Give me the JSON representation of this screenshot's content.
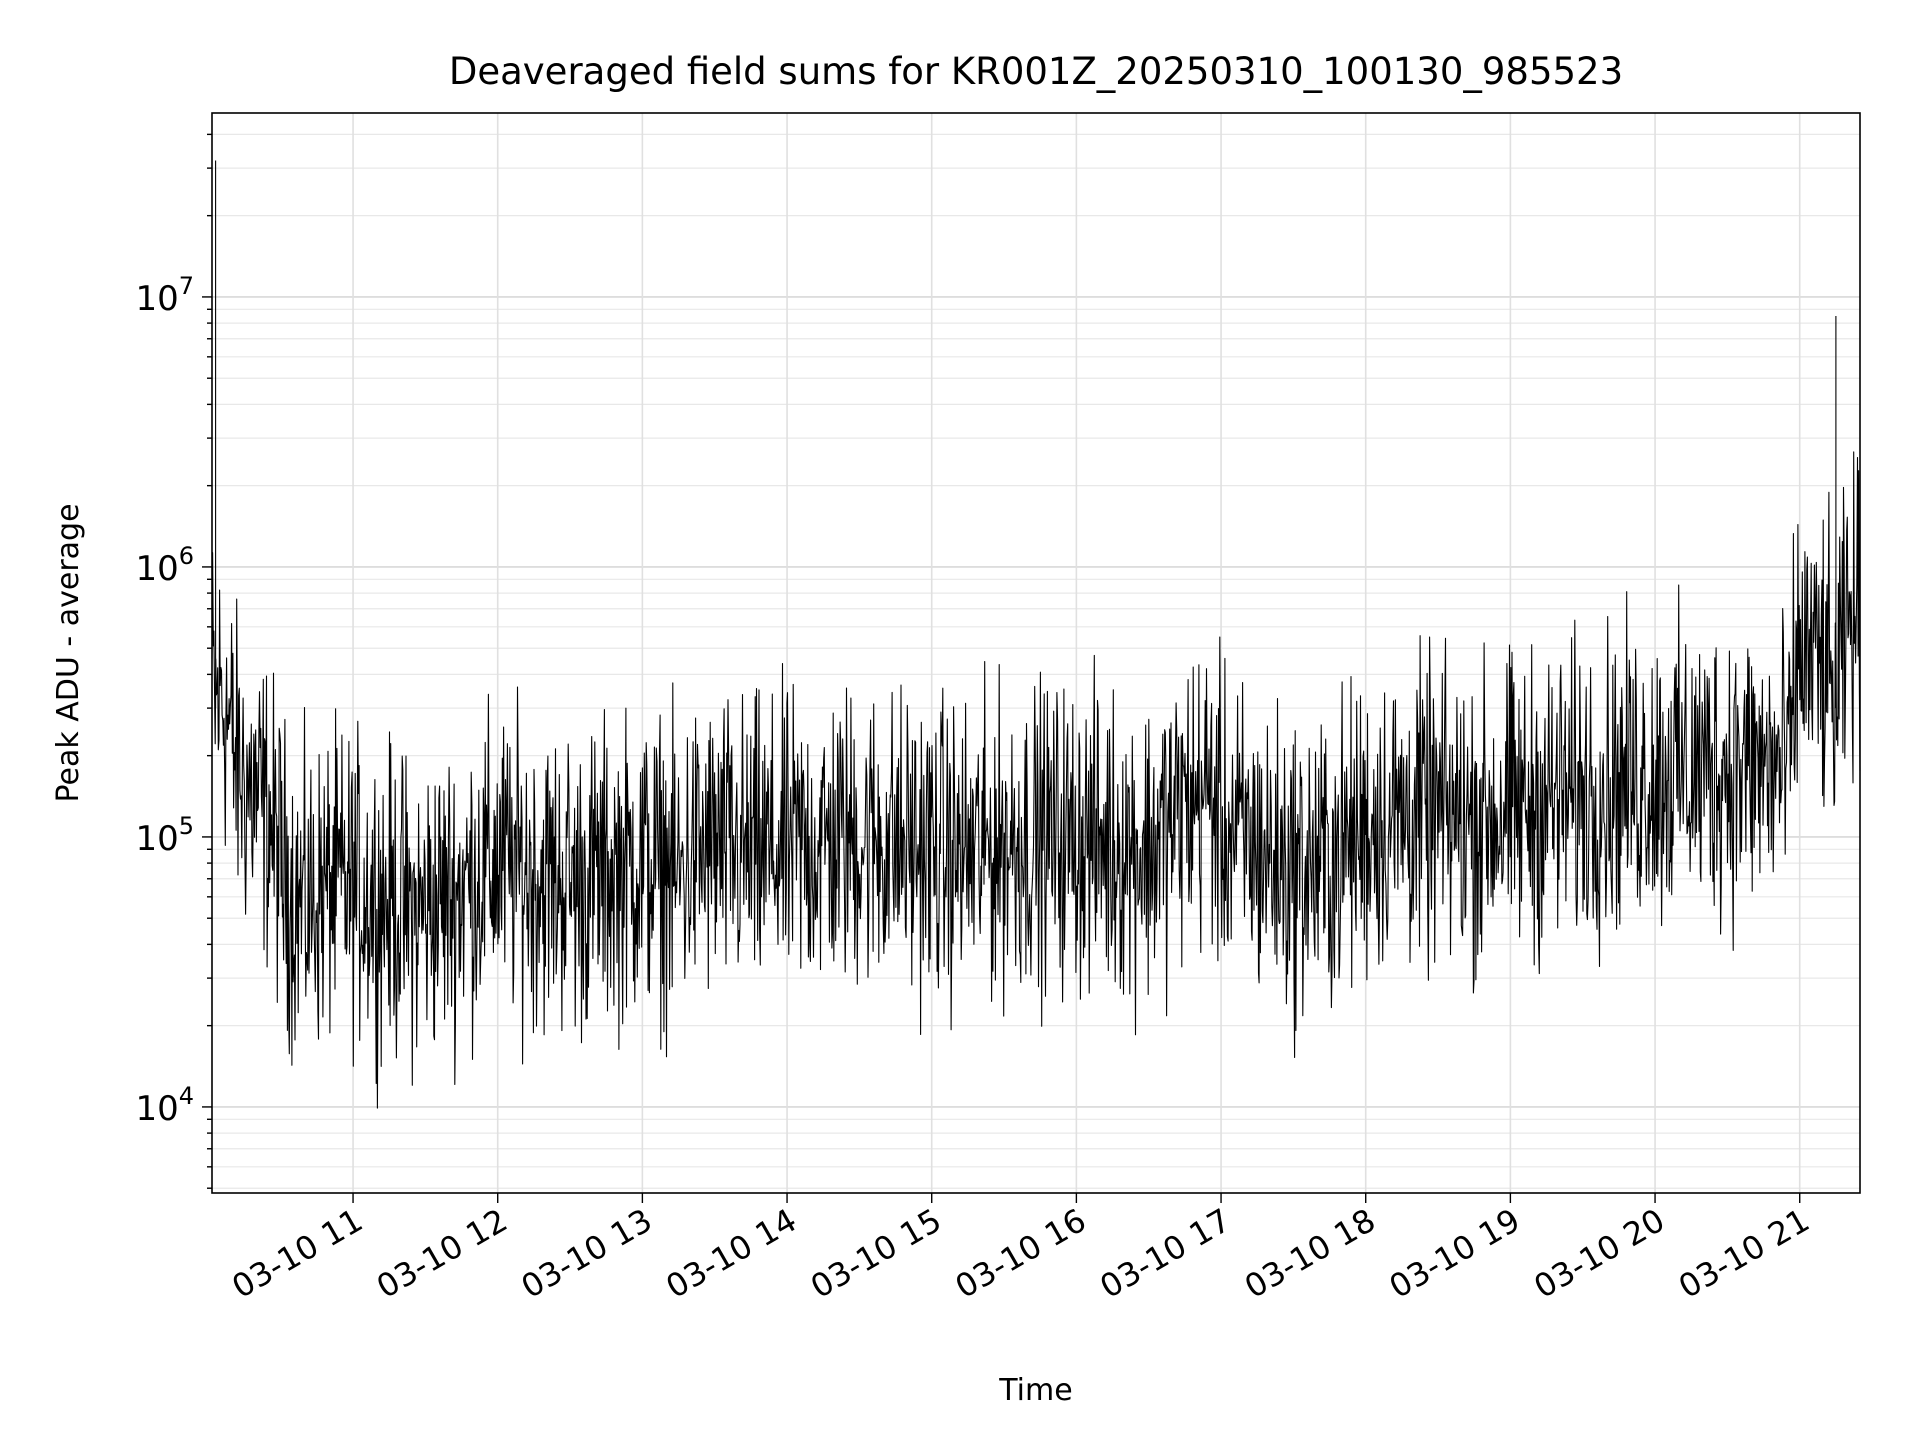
{
  "chart_data": {
    "type": "line",
    "title": "Deaveraged field sums for KR001Z_20250310_100130_985523",
    "xlabel": "Time",
    "ylabel": "Peak ADU - average",
    "y_scale": "log",
    "grid": true,
    "legend": "none",
    "series_color": "#000000",
    "xlim": [
      "2025-03-10 10:01:30",
      "2025-03-10 21:25:00"
    ],
    "ylim": [
      4800,
      48000000
    ],
    "x_ticks": [
      "2025-03-10 11:00",
      "2025-03-10 12:00",
      "2025-03-10 13:00",
      "2025-03-10 14:00",
      "2025-03-10 15:00",
      "2025-03-10 16:00",
      "2025-03-10 17:00",
      "2025-03-10 18:00",
      "2025-03-10 19:00",
      "2025-03-10 20:00",
      "2025-03-10 21:00"
    ],
    "x_tick_labels": [
      "03-10 11",
      "03-10 12",
      "03-10 13",
      "03-10 14",
      "03-10 15",
      "03-10 16",
      "03-10 17",
      "03-10 18",
      "03-10 19",
      "03-10 20",
      "03-10 21"
    ],
    "y_ticks": [
      10000,
      100000,
      1000000,
      10000000
    ],
    "y_tick_labels": [
      {
        "base": "10",
        "exp": "4"
      },
      {
        "base": "10",
        "exp": "5"
      },
      {
        "base": "10",
        "exp": "6"
      },
      {
        "base": "10",
        "exp": "7"
      }
    ],
    "series": [
      {
        "x": [
          "2025-03-10 10:01",
          "2025-03-10 10:03",
          "2025-03-10 10:05",
          "2025-03-10 10:08",
          "2025-03-10 10:10",
          "2025-03-10 10:12",
          "2025-03-10 10:15",
          "2025-03-10 10:20",
          "2025-03-10 10:25",
          "2025-03-10 10:30",
          "2025-03-10 10:35",
          "2025-03-10 10:40",
          "2025-03-10 10:45",
          "2025-03-10 10:50",
          "2025-03-10 11:00",
          "2025-03-10 11:10",
          "2025-03-10 11:20",
          "2025-03-10 11:26",
          "2025-03-10 11:30",
          "2025-03-10 11:40",
          "2025-03-10 11:50",
          "2025-03-10 12:00",
          "2025-03-10 12:10",
          "2025-03-10 12:20",
          "2025-03-10 12:30",
          "2025-03-10 12:32",
          "2025-03-10 12:40",
          "2025-03-10 12:50",
          "2025-03-10 13:00",
          "2025-03-10 13:10",
          "2025-03-10 13:15",
          "2025-03-10 13:20",
          "2025-03-10 13:30",
          "2025-03-10 13:45",
          "2025-03-10 14:00",
          "2025-03-10 14:15",
          "2025-03-10 14:30",
          "2025-03-10 14:45",
          "2025-03-10 15:00",
          "2025-03-10 15:15",
          "2025-03-10 15:30",
          "2025-03-10 15:45",
          "2025-03-10 16:00",
          "2025-03-10 16:15",
          "2025-03-10 16:30",
          "2025-03-10 16:45",
          "2025-03-10 16:55",
          "2025-03-10 17:00",
          "2025-03-10 17:15",
          "2025-03-10 17:30",
          "2025-03-10 17:45",
          "2025-03-10 18:00",
          "2025-03-10 18:15",
          "2025-03-10 18:30",
          "2025-03-10 18:45",
          "2025-03-10 19:00",
          "2025-03-10 19:15",
          "2025-03-10 19:30",
          "2025-03-10 19:45",
          "2025-03-10 20:00",
          "2025-03-10 20:15",
          "2025-03-10 20:30",
          "2025-03-10 20:45",
          "2025-03-10 20:55",
          "2025-03-10 21:00",
          "2025-03-10 21:05",
          "2025-03-10 21:10",
          "2025-03-10 21:15",
          "2025-03-10 21:20",
          "2025-03-10 21:25"
        ],
        "values": [
          450000,
          32000000,
          350000,
          280000,
          220000,
          180000,
          160000,
          140000,
          120000,
          80000,
          60000,
          55000,
          60000,
          65000,
          65000,
          60000,
          55000,
          50000,
          55000,
          60000,
          70000,
          80000,
          75000,
          70000,
          70000,
          65000,
          70000,
          75000,
          80000,
          75000,
          70000,
          85000,
          90000,
          85000,
          90000,
          95000,
          100000,
          95000,
          90000,
          85000,
          95000,
          100000,
          100000,
          95000,
          90000,
          130000,
          150000,
          110000,
          90000,
          75000,
          80000,
          110000,
          120000,
          120000,
          115000,
          125000,
          135000,
          145000,
          160000,
          170000,
          175000,
          180000,
          180000,
          175000,
          500000,
          450000,
          420000,
          8500000,
          600000,
          700000
        ]
      }
    ]
  }
}
